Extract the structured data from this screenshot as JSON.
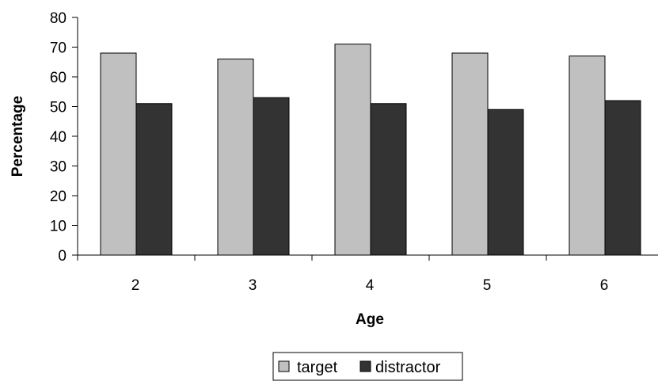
{
  "chart_data": {
    "type": "bar",
    "categories": [
      "2",
      "3",
      "4",
      "5",
      "6"
    ],
    "series": [
      {
        "name": "target",
        "values": [
          68,
          66,
          71,
          68,
          67
        ],
        "color": "#c0c0c0"
      },
      {
        "name": "distractor",
        "values": [
          51,
          53,
          51,
          49,
          52
        ],
        "color": "#333333"
      }
    ],
    "xlabel": "Age",
    "ylabel": "Percentage",
    "ylim": [
      0,
      80
    ],
    "yticks": [
      0,
      10,
      20,
      30,
      40,
      50,
      60,
      70,
      80
    ],
    "grid": false,
    "legend_position": "bottom"
  }
}
